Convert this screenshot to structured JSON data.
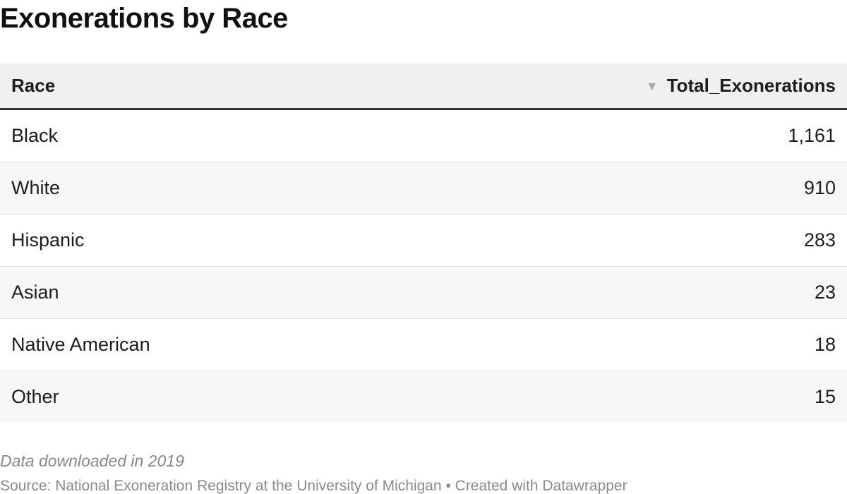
{
  "title": "Exonerations by Race",
  "table": {
    "columns": [
      "Race",
      "Total_Exonerations"
    ],
    "sort_indicator": "▼",
    "sort_icon": "sort-descending-icon",
    "rows": [
      {
        "race": "Black",
        "total": "1,161"
      },
      {
        "race": "White",
        "total": "910"
      },
      {
        "race": "Hispanic",
        "total": "283"
      },
      {
        "race": "Asian",
        "total": "23"
      },
      {
        "race": "Native American",
        "total": "18"
      },
      {
        "race": "Other",
        "total": "15"
      }
    ]
  },
  "chart_data": {
    "type": "table",
    "title": "Exonerations by Race",
    "columns": [
      "Race",
      "Total_Exonerations"
    ],
    "categories": [
      "Black",
      "White",
      "Hispanic",
      "Asian",
      "Native American",
      "Other"
    ],
    "values": [
      1161,
      910,
      283,
      23,
      18,
      15
    ],
    "sorted_by": "Total_Exonerations",
    "sort_order": "descending"
  },
  "notes": "Data downloaded in 2019",
  "source": "Source: National Exoneration Registry at the University of Michigan • Created with Datawrapper",
  "colors": {
    "header_background": "#f0f0f0",
    "header_rule": "#333333",
    "stripe": "#f7f7f7",
    "footnote_text": "#888888"
  }
}
